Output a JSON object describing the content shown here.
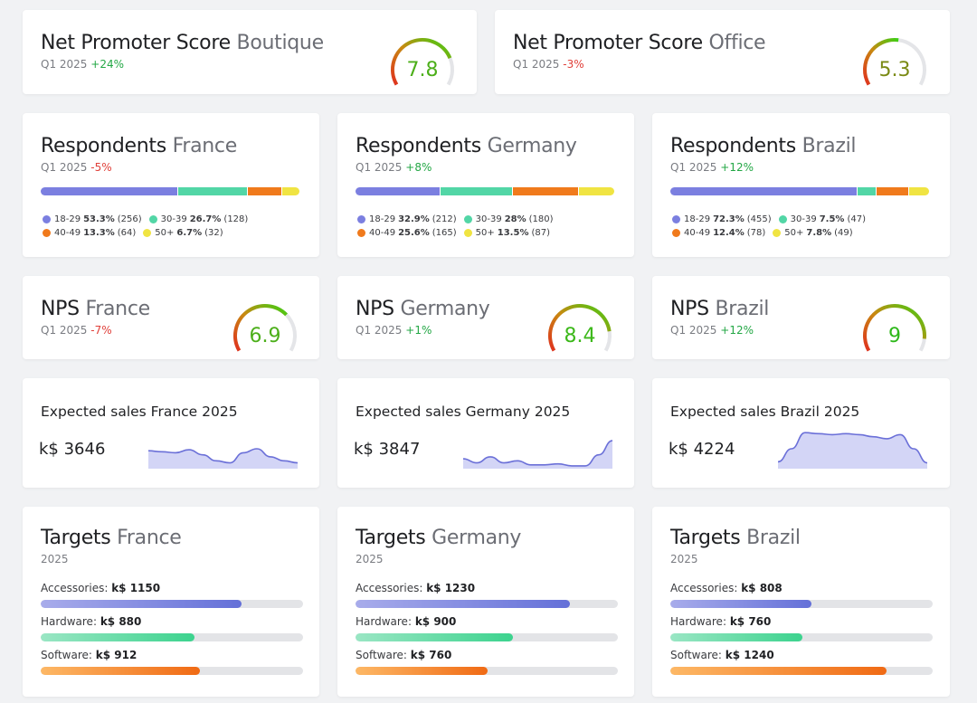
{
  "colors": {
    "age_18_29": "#7b7fe0",
    "age_30_39": "#52d6a6",
    "age_40_49": "#f07a1c",
    "age_50_plus": "#f0e442",
    "positive": "#23a745",
    "negative": "#e0403a"
  },
  "nps_overall": [
    {
      "title": "Net Promoter Score",
      "highlight": "Boutique",
      "period": "Q1 2025",
      "change": "+24%",
      "change_dir": "pos",
      "score": "7.8",
      "score_value": 7.8,
      "score_color": "#4caf1a"
    },
    {
      "title": "Net Promoter Score",
      "highlight": "Office",
      "period": "Q1 2025",
      "change": "-3%",
      "change_dir": "neg",
      "score": "5.3",
      "score_value": 5.3,
      "score_color": "#7a8a14"
    }
  ],
  "respondents": [
    {
      "title": "Respondents",
      "highlight": "France",
      "period": "Q1 2025",
      "change": "-5%",
      "change_dir": "neg",
      "groups": [
        {
          "label": "18-29",
          "pct": "53.3%",
          "count": "(256)",
          "share": 53.3
        },
        {
          "label": "30-39",
          "pct": "26.7%",
          "count": "(128)",
          "share": 26.7
        },
        {
          "label": "40-49",
          "pct": "13.3%",
          "count": "(64)",
          "share": 13.3
        },
        {
          "label": "50+",
          "pct": "6.7%",
          "count": "(32)",
          "share": 6.7
        }
      ]
    },
    {
      "title": "Respondents",
      "highlight": "Germany",
      "period": "Q1 2025",
      "change": "+8%",
      "change_dir": "pos",
      "groups": [
        {
          "label": "18-29",
          "pct": "32.9%",
          "count": "(212)",
          "share": 32.9
        },
        {
          "label": "30-39",
          "pct": "28%",
          "count": "(180)",
          "share": 28
        },
        {
          "label": "40-49",
          "pct": "25.6%",
          "count": "(165)",
          "share": 25.6
        },
        {
          "label": "50+",
          "pct": "13.5%",
          "count": "(87)",
          "share": 13.5
        }
      ]
    },
    {
      "title": "Respondents",
      "highlight": "Brazil",
      "period": "Q1 2025",
      "change": "+12%",
      "change_dir": "pos",
      "groups": [
        {
          "label": "18-29",
          "pct": "72.3%",
          "count": "(455)",
          "share": 72.3
        },
        {
          "label": "30-39",
          "pct": "7.5%",
          "count": "(47)",
          "share": 7.5
        },
        {
          "label": "40-49",
          "pct": "12.4%",
          "count": "(78)",
          "share": 12.4
        },
        {
          "label": "50+",
          "pct": "7.8%",
          "count": "(49)",
          "share": 7.8
        }
      ]
    }
  ],
  "nps_country": [
    {
      "title": "NPS",
      "highlight": "France",
      "period": "Q1 2025",
      "change": "-7%",
      "change_dir": "neg",
      "score": "6.9",
      "score_value": 6.9,
      "score_color": "#4caf1a"
    },
    {
      "title": "NPS",
      "highlight": "Germany",
      "period": "Q1 2025",
      "change": "+1%",
      "change_dir": "pos",
      "score": "8.4",
      "score_value": 8.4,
      "score_color": "#3cb81a"
    },
    {
      "title": "NPS",
      "highlight": "Brazil",
      "period": "Q1 2025",
      "change": "+12%",
      "change_dir": "pos",
      "score": "9",
      "score_value": 9,
      "score_color": "#2eb81a"
    }
  ],
  "expected_sales": [
    {
      "title": "Expected sales France 2025",
      "value": "k$ 3646",
      "trend": [
        16,
        15,
        14,
        17,
        12,
        6,
        4,
        14,
        18,
        10,
        6,
        4
      ]
    },
    {
      "title": "Expected sales Germany 2025",
      "value": "k$ 3847",
      "trend": [
        8,
        4,
        10,
        4,
        6,
        2,
        2,
        3,
        1,
        1,
        12,
        26
      ]
    },
    {
      "title": "Expected sales Brazil 2025",
      "value": "k$ 4224",
      "trend": [
        5,
        18,
        34,
        33,
        32,
        33,
        32,
        30,
        28,
        32,
        18,
        4
      ]
    }
  ],
  "targets": [
    {
      "title": "Targets",
      "highlight": "France",
      "period": "2025",
      "rows": [
        {
          "label": "Accessories:",
          "value": "k$ 1150",
          "fill_pct": 76.5
        },
        {
          "label": "Hardware:",
          "value": "k$ 880",
          "fill_pct": 58.5
        },
        {
          "label": "Software:",
          "value": "k$ 912",
          "fill_pct": 60.7
        }
      ]
    },
    {
      "title": "Targets",
      "highlight": "Germany",
      "period": "2025",
      "rows": [
        {
          "label": "Accessories:",
          "value": "k$ 1230",
          "fill_pct": 81.8
        },
        {
          "label": "Hardware:",
          "value": "k$ 900",
          "fill_pct": 59.9
        },
        {
          "label": "Software:",
          "value": "k$ 760",
          "fill_pct": 50.5
        }
      ]
    },
    {
      "title": "Targets",
      "highlight": "Brazil",
      "period": "2025",
      "rows": [
        {
          "label": "Accessories:",
          "value": "k$ 808",
          "fill_pct": 53.7
        },
        {
          "label": "Hardware:",
          "value": "k$ 760",
          "fill_pct": 50.5
        },
        {
          "label": "Software:",
          "value": "k$ 1240",
          "fill_pct": 82.5
        }
      ]
    }
  ]
}
